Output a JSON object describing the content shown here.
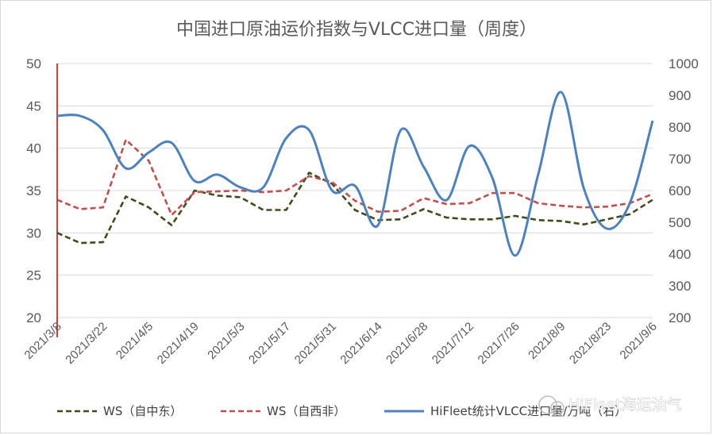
{
  "chart_data": {
    "type": "line",
    "title": "中国进口原油运价指数与VLCC进口量（周度）",
    "x": [
      "2021/3/8",
      "2021/3/15",
      "2021/3/22",
      "2021/3/29",
      "2021/4/5",
      "2021/4/12",
      "2021/4/19",
      "2021/4/26",
      "2021/5/3",
      "2021/5/10",
      "2021/5/17",
      "2021/5/24",
      "2021/5/31",
      "2021/6/7",
      "2021/6/14",
      "2021/6/21",
      "2021/6/28",
      "2021/7/5",
      "2021/7/12",
      "2021/7/19",
      "2021/7/26",
      "2021/8/2",
      "2021/8/9",
      "2021/8/16",
      "2021/8/23",
      "2021/8/30",
      "2021/9/6"
    ],
    "x_tick_labels": [
      "2021/3/8",
      "2021/3/22",
      "2021/4/5",
      "2021/4/19",
      "2021/5/3",
      "2021/5/17",
      "2021/5/31",
      "2021/6/14",
      "2021/6/28",
      "2021/7/12",
      "2021/7/26",
      "2021/8/9",
      "2021/8/23",
      "2021/9/6"
    ],
    "y_left": {
      "ylim": [
        20,
        50
      ],
      "ticks": [
        20,
        25,
        30,
        35,
        40,
        45,
        50
      ]
    },
    "y_right": {
      "ylim": [
        200,
        1000
      ],
      "ticks": [
        200,
        300,
        400,
        500,
        600,
        700,
        800,
        900,
        1000
      ]
    },
    "grid": "horizontal",
    "legend": "bottom",
    "series": [
      {
        "name": "WS（自中东）",
        "axis": "left",
        "style": "dashed",
        "color": "#3d4d1c",
        "values": [
          30.0,
          28.8,
          28.9,
          34.3,
          33.0,
          30.9,
          35.0,
          34.4,
          34.2,
          32.7,
          32.7,
          37.1,
          35.8,
          32.7,
          31.5,
          31.6,
          32.8,
          31.8,
          31.6,
          31.6,
          32.0,
          31.5,
          31.4,
          31.0,
          31.6,
          32.2,
          33.9
        ]
      },
      {
        "name": "WS（自西非）",
        "axis": "left",
        "style": "dashed",
        "color": "#c0504d",
        "values": [
          33.9,
          32.8,
          33.0,
          41.0,
          38.5,
          32.1,
          34.8,
          34.9,
          35.0,
          34.8,
          35.0,
          36.7,
          36.0,
          33.8,
          32.5,
          32.6,
          34.1,
          33.4,
          33.5,
          34.7,
          34.7,
          33.5,
          33.2,
          33.0,
          33.1,
          33.5,
          34.6
        ]
      },
      {
        "name": "HiFleet统计VLCC进口量/万吨（右）",
        "axis": "right",
        "style": "solid",
        "color": "#4f81bd",
        "values": [
          835,
          835,
          790,
          670,
          720,
          750,
          630,
          650,
          610,
          610,
          765,
          790,
          600,
          615,
          490,
          790,
          675,
          570,
          740,
          640,
          395,
          650,
          910,
          605,
          480,
          560,
          820
        ]
      }
    ]
  },
  "watermark": "HiFleet海运油气",
  "colors": {
    "axis_line_left": "#c00000",
    "grid": "#d9d9d9",
    "text": "#595959"
  }
}
